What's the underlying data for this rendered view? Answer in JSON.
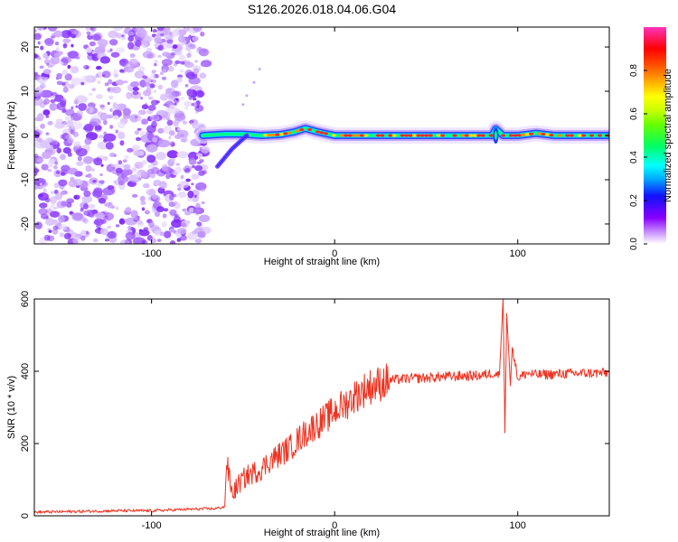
{
  "title": "S126.2026.018.04.06.G04",
  "chart_data": [
    {
      "type": "heatmap",
      "title": "S126.2026.018.04.06.G04",
      "xlabel": "Height of straight line (km)",
      "ylabel": "Frequency (Hz)",
      "xlim": [
        -164,
        150
      ],
      "ylim": [
        -24.5,
        24.5
      ],
      "xticks": [
        -100,
        0,
        100
      ],
      "yticks": [
        20,
        10,
        0,
        -10,
        -20
      ],
      "noise_region": {
        "x_from": -164,
        "x_to": -72,
        "freq_from": -24.5,
        "freq_to": 24.5
      },
      "signal_ridge": {
        "x": [
          -72,
          -60,
          -50,
          -40,
          -30,
          -22,
          -16,
          -10,
          0,
          20,
          40,
          60,
          80,
          86,
          88,
          92,
          100,
          110,
          120,
          150
        ],
        "freq": [
          0,
          0.3,
          0.3,
          0,
          0.2,
          0.8,
          1.6,
          0.9,
          0,
          0,
          0,
          0,
          0,
          0,
          1.5,
          0,
          0,
          0.5,
          0,
          0
        ]
      },
      "descending_streak": {
        "x": [
          -64,
          -56,
          -48
        ],
        "freq": [
          -7,
          -3,
          0
        ]
      },
      "spike_near_x": 88,
      "colorbar": {
        "label": "Normalized spectral amplitude",
        "ticks": [
          0.0,
          0.2,
          0.4,
          0.6,
          0.8
        ],
        "range": [
          0,
          1
        ],
        "colors": [
          "#ffffff",
          "#cc99ff",
          "#8800ff",
          "#1111ff",
          "#00aaff",
          "#00ffff",
          "#00ff66",
          "#66ff00",
          "#ccff00",
          "#ffff00",
          "#ffaa00",
          "#ff5500",
          "#ff0000",
          "#ff33bb"
        ]
      }
    },
    {
      "type": "line",
      "xlabel": "Height of straight line (km)",
      "ylabel": "SNR (10 * v/v)",
      "xlim": [
        -164,
        150
      ],
      "ylim": [
        0,
        600
      ],
      "xticks": [
        -100,
        0,
        100
      ],
      "yticks": [
        0,
        200,
        400,
        600
      ],
      "series": [
        {
          "name": "SNR",
          "color": "#ee3322",
          "x": [
            -164,
            -140,
            -120,
            -100,
            -80,
            -65,
            -60,
            -59,
            -56,
            -52,
            -48,
            -44,
            -40,
            -36,
            -30,
            -24,
            -18,
            -12,
            -6,
            0,
            6,
            12,
            18,
            24,
            30,
            40,
            50,
            60,
            70,
            80,
            86,
            90,
            92,
            93,
            94,
            96,
            97,
            100,
            105,
            110,
            120,
            130,
            140,
            150
          ],
          "y": [
            10,
            12,
            14,
            14,
            18,
            20,
            25,
            150,
            60,
            90,
            110,
            120,
            130,
            150,
            170,
            190,
            220,
            245,
            265,
            290,
            310,
            335,
            355,
            365,
            375,
            380,
            382,
            385,
            387,
            388,
            395,
            390,
            600,
            230,
            560,
            360,
            470,
            380,
            395,
            390,
            392,
            394,
            395,
            396
          ]
        }
      ]
    }
  ]
}
